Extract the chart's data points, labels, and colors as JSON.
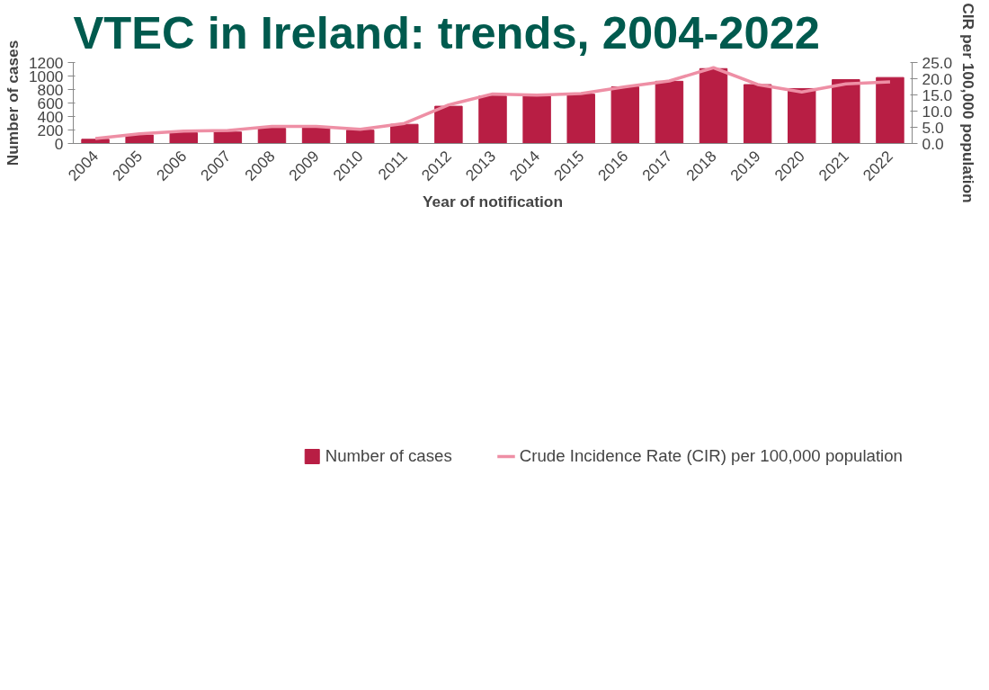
{
  "chart_data": {
    "type": "bar",
    "title": "VTEC in Ireland: trends, 2004-2022",
    "xlabel": "Year of notification",
    "ylabel": "Number of cases",
    "y2label": "CIR per 100,000 population",
    "categories": [
      "2004",
      "2005",
      "2006",
      "2007",
      "2008",
      "2009",
      "2010",
      "2011",
      "2012",
      "2013",
      "2014",
      "2015",
      "2016",
      "2017",
      "2018",
      "2019",
      "2020",
      "2021",
      "2022"
    ],
    "series": [
      {
        "name": "Number of cases",
        "color": "#b81e44",
        "values": [
          62,
          126,
          160,
          170,
          225,
          238,
          197,
          284,
          552,
          703,
          706,
          731,
          839,
          922,
          1110,
          873,
          814,
          947,
          978
        ]
      },
      {
        "name": "Crude Incidence Rate (CIR) per 100,000 population",
        "type": "line",
        "axis": "y2",
        "color": "#ee8fa5",
        "values": [
          1.5,
          3.0,
          3.8,
          4.0,
          5.3,
          5.3,
          4.4,
          6.2,
          11.9,
          15.3,
          14.9,
          15.4,
          17.5,
          19.3,
          23.4,
          18.2,
          15.9,
          18.4,
          19.0
        ]
      }
    ],
    "ylim": [
      0,
      1200
    ],
    "yticks": [
      0,
      200,
      400,
      600,
      800,
      1000,
      1200
    ],
    "y2lim": [
      0,
      25
    ],
    "y2ticks": [
      {
        "value": 0,
        "label": "0.0"
      },
      {
        "value": 5,
        "label": "5.0"
      },
      {
        "value": 10,
        "label": "10.0"
      },
      {
        "value": 15,
        "label": "15.0"
      },
      {
        "value": 20,
        "label": "20.0"
      },
      {
        "value": 25,
        "label": "25.0"
      }
    ],
    "grid": false,
    "legend": "bottom",
    "marker": "none",
    "line_style": "solid"
  }
}
